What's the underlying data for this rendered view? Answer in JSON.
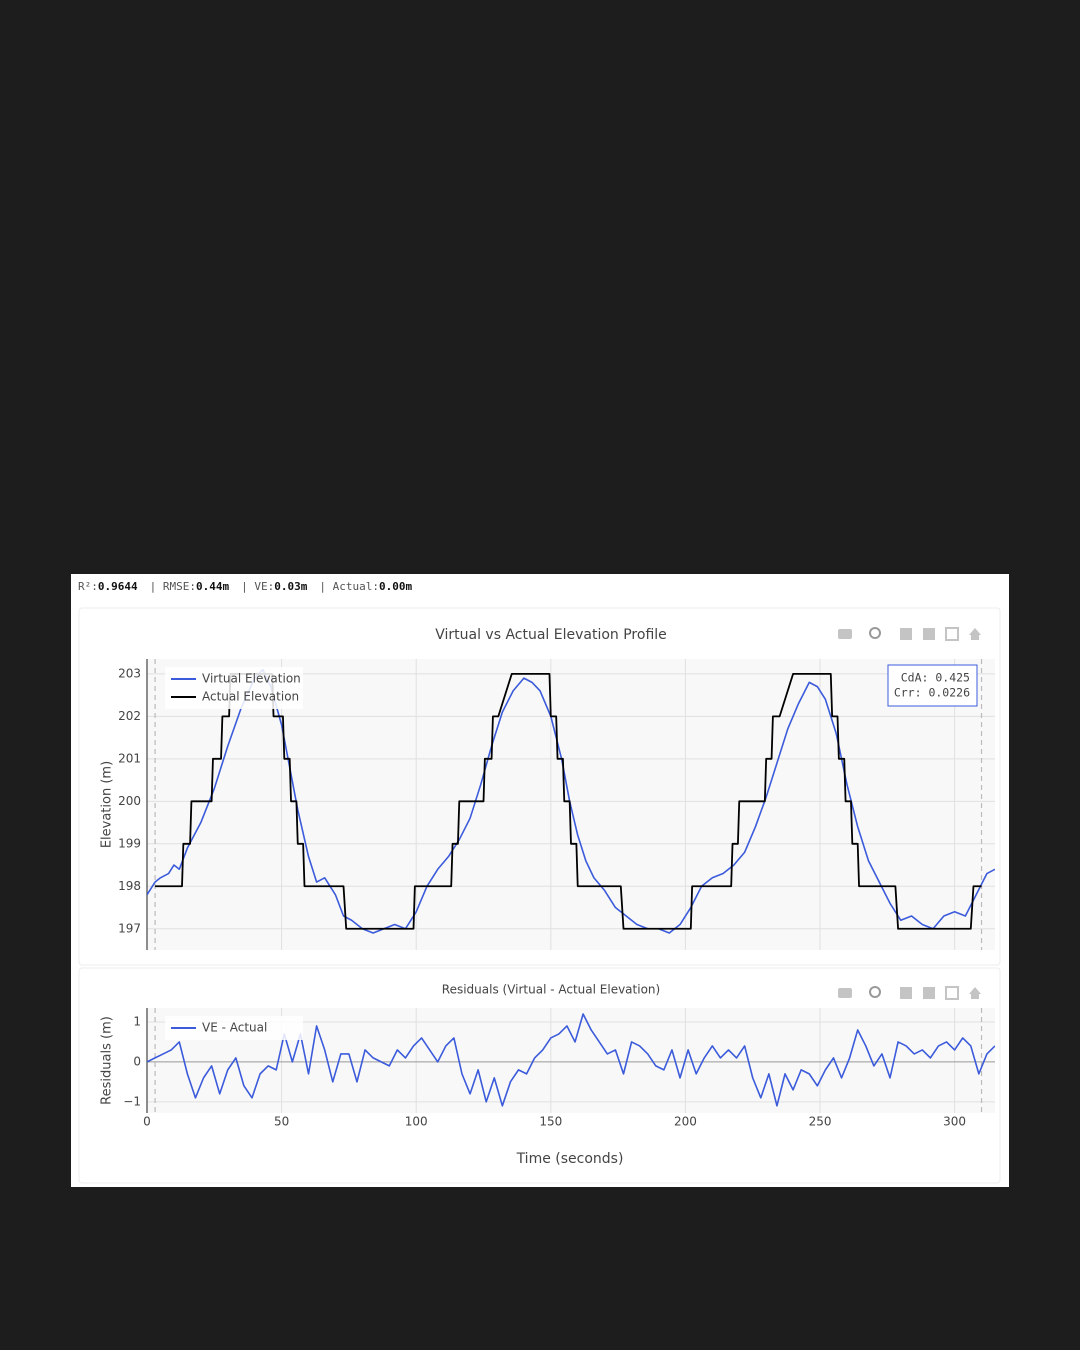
{
  "stats": [
    {
      "label": "R²:",
      "value": "0.9644"
    },
    {
      "label": "| RMSE:",
      "value": "0.44m"
    },
    {
      "label": "| VE:",
      "value": "0.03m"
    },
    {
      "label": "| Actual:",
      "value": "0.00m"
    }
  ],
  "chart_data": [
    {
      "type": "line",
      "title": "Virtual vs Actual Elevation Profile",
      "ylabel": "Elevation (m)",
      "xlim": [
        0,
        315
      ],
      "xticks": [
        0,
        50,
        100,
        150,
        200,
        250,
        300
      ],
      "show_xtick_labels": false,
      "ylim": [
        196.5,
        203.35
      ],
      "yticks": [
        197,
        198,
        199,
        200,
        201,
        202,
        203
      ],
      "grid": true,
      "vlines": [
        3,
        310
      ],
      "legend": "upper left",
      "annotation": [
        "CdA: 0.425",
        "Crr: 0.0226"
      ],
      "series": [
        {
          "name": "Virtual Elevation",
          "color": "#3b5bdb",
          "x": [
            0,
            3,
            5,
            8,
            10,
            12,
            15,
            20,
            25,
            30,
            35,
            40,
            43,
            46,
            50,
            53,
            56,
            60,
            63,
            66,
            70,
            73,
            76,
            80,
            84,
            88,
            92,
            96,
            100,
            104,
            108,
            112,
            116,
            120,
            124,
            128,
            132,
            136,
            140,
            143,
            146,
            150,
            154,
            157,
            160,
            163,
            166,
            170,
            174,
            178,
            182,
            186,
            190,
            194,
            198,
            202,
            206,
            210,
            214,
            218,
            222,
            226,
            230,
            234,
            238,
            242,
            246,
            249,
            252,
            256,
            260,
            264,
            268,
            272,
            276,
            280,
            284,
            288,
            292,
            296,
            300,
            304,
            308,
            312,
            315
          ],
          "values": [
            197.8,
            198.1,
            198.2,
            198.3,
            198.5,
            198.4,
            198.9,
            199.5,
            200.3,
            201.3,
            202.2,
            202.9,
            203.1,
            202.7,
            201.8,
            200.8,
            199.8,
            198.7,
            198.1,
            198.2,
            197.8,
            197.3,
            197.2,
            197.0,
            196.9,
            197.0,
            197.1,
            197.0,
            197.4,
            198.0,
            198.4,
            198.7,
            199.1,
            199.6,
            200.4,
            201.3,
            202.1,
            202.6,
            202.9,
            202.8,
            202.6,
            202.0,
            201.0,
            200.0,
            199.2,
            198.6,
            198.2,
            197.9,
            197.5,
            197.3,
            197.1,
            197.0,
            197.0,
            196.9,
            197.1,
            197.5,
            198.0,
            198.2,
            198.3,
            198.5,
            198.8,
            199.4,
            200.1,
            200.9,
            201.7,
            202.3,
            202.8,
            202.7,
            202.4,
            201.6,
            200.4,
            199.4,
            198.6,
            198.1,
            197.6,
            197.2,
            197.3,
            197.1,
            197.0,
            197.3,
            197.4,
            197.3,
            197.8,
            198.3,
            198.4
          ]
        },
        {
          "name": "Actual Elevation",
          "color": "#000000",
          "x": [
            3,
            13,
            13.5,
            16,
            16.5,
            24,
            24.5,
            27.5,
            28,
            30.5,
            31,
            46.5,
            47,
            50.5,
            51,
            53,
            53.5,
            55.5,
            56,
            58,
            58.5,
            73,
            74,
            99,
            99.5,
            113,
            113.5,
            115.5,
            116,
            125,
            125.5,
            128,
            128.5,
            130.5,
            135.5,
            149.5,
            150,
            152,
            152.5,
            154.5,
            155,
            157,
            157.5,
            159.5,
            160,
            176,
            177,
            202,
            202.5,
            217,
            217.5,
            219.5,
            220,
            229.5,
            230,
            232,
            232.5,
            235,
            240,
            254,
            254.5,
            256.5,
            257,
            259,
            259.5,
            261.5,
            262,
            264,
            264.5,
            278,
            279,
            306,
            307,
            310
          ],
          "values": [
            198,
            198,
            199,
            199,
            200,
            200,
            201,
            201,
            202,
            202,
            203,
            203,
            202,
            202,
            201,
            201,
            200,
            200,
            199,
            199,
            198,
            198,
            197,
            197,
            198,
            198,
            199,
            199,
            200,
            200,
            201,
            201,
            202,
            202,
            203,
            203,
            202,
            202,
            201,
            201,
            200,
            200,
            199,
            199,
            198,
            198,
            197,
            197,
            198,
            198,
            199,
            199,
            200,
            200,
            201,
            201,
            202,
            202,
            203,
            203,
            202,
            202,
            201,
            201,
            200,
            200,
            199,
            199,
            198,
            198,
            197,
            197,
            198,
            198
          ]
        }
      ]
    },
    {
      "type": "line",
      "title": "Residuals (Virtual - Actual Elevation)",
      "xlabel": "Time (seconds)",
      "ylabel": "Residuals (m)",
      "xlim": [
        0,
        315
      ],
      "xticks": [
        0,
        50,
        100,
        150,
        200,
        250,
        300
      ],
      "show_xtick_labels": true,
      "ylim": [
        -1.28,
        1.35
      ],
      "yticks": [
        {
          "value": -1,
          "label": "−1"
        },
        0,
        1
      ],
      "grid": true,
      "zeroline": true,
      "vlines": [
        3,
        310
      ],
      "legend": "upper left",
      "series": [
        {
          "name": "VE - Actual",
          "color": "#3b5bdb",
          "x": [
            0,
            3,
            6,
            9,
            12,
            15,
            18,
            21,
            24,
            27,
            30,
            33,
            36,
            39,
            42,
            45,
            48,
            51,
            54,
            57,
            60,
            63,
            66,
            69,
            72,
            75,
            78,
            81,
            84,
            87,
            90,
            93,
            96,
            99,
            102,
            105,
            108,
            111,
            114,
            117,
            120,
            123,
            126,
            129,
            132,
            135,
            138,
            141,
            144,
            147,
            150,
            153,
            156,
            159,
            162,
            165,
            168,
            171,
            174,
            177,
            180,
            183,
            186,
            189,
            192,
            195,
            198,
            201,
            204,
            207,
            210,
            213,
            216,
            219,
            222,
            225,
            228,
            231,
            234,
            237,
            240,
            243,
            246,
            249,
            252,
            255,
            258,
            261,
            264,
            267,
            270,
            273,
            276,
            279,
            282,
            285,
            288,
            291,
            294,
            297,
            300,
            303,
            306,
            309,
            312,
            315
          ],
          "values": [
            0.0,
            0.1,
            0.2,
            0.3,
            0.5,
            -0.3,
            -0.9,
            -0.4,
            -0.1,
            -0.8,
            -0.2,
            0.1,
            -0.6,
            -0.9,
            -0.3,
            -0.1,
            -0.2,
            0.7,
            0.0,
            0.7,
            -0.3,
            0.9,
            0.3,
            -0.5,
            0.2,
            0.2,
            -0.5,
            0.3,
            0.1,
            0.0,
            -0.1,
            0.3,
            0.1,
            0.4,
            0.6,
            0.3,
            0.0,
            0.4,
            0.6,
            -0.3,
            -0.8,
            -0.2,
            -1.0,
            -0.4,
            -1.1,
            -0.5,
            -0.2,
            -0.3,
            0.1,
            0.3,
            0.6,
            0.7,
            0.9,
            0.5,
            1.2,
            0.8,
            0.5,
            0.2,
            0.3,
            -0.3,
            0.5,
            0.4,
            0.2,
            -0.1,
            -0.2,
            0.3,
            -0.4,
            0.3,
            -0.3,
            0.1,
            0.4,
            0.1,
            0.3,
            0.1,
            0.4,
            -0.4,
            -0.9,
            -0.3,
            -1.1,
            -0.3,
            -0.7,
            -0.2,
            -0.3,
            -0.6,
            -0.2,
            0.1,
            -0.4,
            0.1,
            0.8,
            0.4,
            -0.1,
            0.2,
            -0.4,
            0.5,
            0.4,
            0.2,
            0.3,
            0.1,
            0.4,
            0.5,
            0.3,
            0.6,
            0.4,
            -0.3,
            0.2,
            0.4
          ]
        }
      ]
    }
  ]
}
